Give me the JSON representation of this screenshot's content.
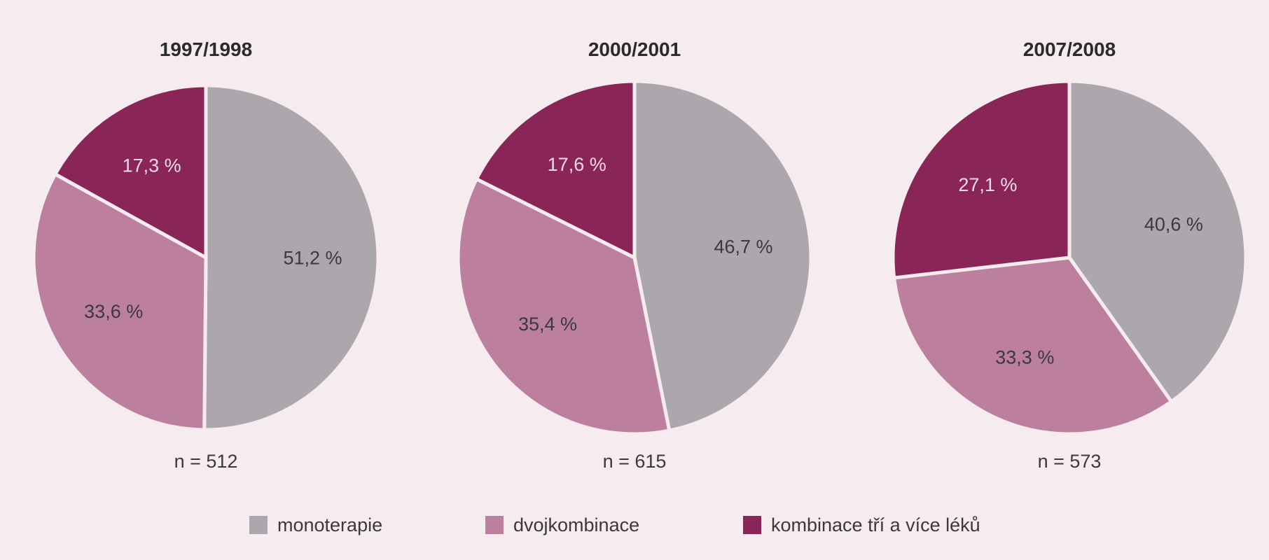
{
  "chart_data": [
    {
      "type": "pie",
      "title": "1997/1998",
      "note": "n = 512",
      "categories": [
        "monoterapie",
        "dvojkombinace",
        "kombinace tří a více léků"
      ],
      "values": [
        51.2,
        33.6,
        17.3
      ],
      "labels": [
        "51,2 %",
        "33,6 %",
        "17,3 %"
      ],
      "colors": [
        "#aca7ac",
        "#bc7f9d",
        "#8a2657"
      ]
    },
    {
      "type": "pie",
      "title": "2000/2001",
      "note": "n = 615",
      "categories": [
        "monoterapie",
        "dvojkombinace",
        "kombinace tří a více léků"
      ],
      "values": [
        46.7,
        35.4,
        17.6
      ],
      "labels": [
        "46,7 %",
        "35,4 %",
        "17,6 %"
      ],
      "colors": [
        "#aca7ac",
        "#bc7f9d",
        "#8a2657"
      ]
    },
    {
      "type": "pie",
      "title": "2007/2008",
      "note": "n = 573",
      "categories": [
        "monoterapie",
        "dvojkombinace",
        "kombinace tří a více léků"
      ],
      "values": [
        40.6,
        33.3,
        27.1
      ],
      "labels": [
        "40,6 %",
        "33,3 %",
        "27,1 %"
      ],
      "colors": [
        "#aca7ac",
        "#bc7f9d",
        "#8a2657"
      ]
    }
  ],
  "legend": {
    "placement": "bottom",
    "items": [
      {
        "label": "monoterapie",
        "color": "#aca7ac"
      },
      {
        "label": "dvojkombinace",
        "color": "#bc7f9d"
      },
      {
        "label": "kombinace tří a více léků",
        "color": "#8a2657"
      }
    ]
  },
  "colors": {
    "background": "#f6ecef",
    "separator": "#f6ecef"
  }
}
